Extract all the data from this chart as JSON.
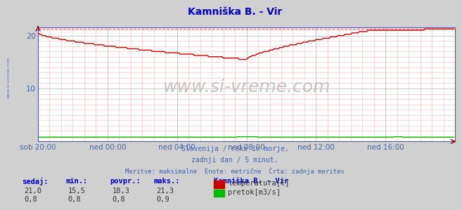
{
  "title": "Kamniška B. - Vir",
  "title_color": "#0000cc",
  "bg_color": "#d0d0d0",
  "plot_bg_color": "#ffffff",
  "grid_color_major": "#bbbbbb",
  "text_color": "#4466aa",
  "watermark": "www.si-vreme.com",
  "subtitle1": "Slovenija / reke in morje.",
  "subtitle2": "zadnji dan / 5 minut.",
  "subtitle3": "Meritve: maksimalne  Enote: metrične  Črta: zadnja meritev",
  "legend_title": "Kamniška B. - Vir",
  "legend_entries": [
    "temperatura[C]",
    "pretok[m3/s]"
  ],
  "legend_colors": [
    "#cc0000",
    "#00bb00"
  ],
  "stats_labels": [
    "sedaj:",
    "min.:",
    "povpr.:",
    "maks.:"
  ],
  "stats_temp": [
    "21,0",
    "15,5",
    "18,3",
    "21,3"
  ],
  "stats_pretok": [
    "0,8",
    "0,8",
    "0,8",
    "0,9"
  ],
  "yticks": [
    10,
    20
  ],
  "xlim": [
    0,
    288
  ],
  "xtick_positions": [
    0,
    48,
    96,
    144,
    192,
    240
  ],
  "xtick_labels": [
    "sob 20:00",
    "ned 00:00",
    "ned 04:00",
    "ned 08:00",
    "ned 12:00",
    "ned 16:00"
  ],
  "dashed_line_value": 21.3,
  "dashed_line_color": "#ff6666",
  "temp_line_color": "#cc0000",
  "pretok_line_color": "#00bb00",
  "ylim_max": 21.5
}
